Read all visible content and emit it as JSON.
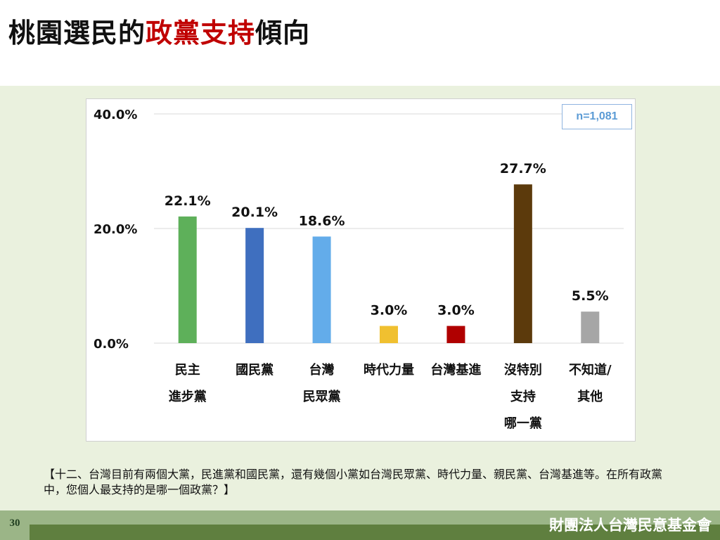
{
  "slide": {
    "title_prefix": "桃園選民的",
    "title_highlight": "政黨支持",
    "title_suffix": "傾向",
    "question": "【十二、台灣目前有兩個大黨，民進黨和國民黨，還有幾個小黨如台灣民眾黨、時代力量、親民黨、台灣基進等。在所有政黨中，您個人最支持的是哪一個政黨？】",
    "page_number": "30",
    "organization": "財團法人台灣民意基金會"
  },
  "chart_data": {
    "type": "bar",
    "sample_note": "n=1,081",
    "categories": [
      [
        "民主",
        "進步黨"
      ],
      [
        "國民黨"
      ],
      [
        "台灣",
        "民眾黨"
      ],
      [
        "時代力量"
      ],
      [
        "台灣基進"
      ],
      [
        "沒特別",
        "支持",
        "哪一黨"
      ],
      [
        "不知道/",
        "其他"
      ]
    ],
    "values": [
      22.1,
      20.1,
      18.6,
      3.0,
      3.0,
      27.7,
      5.5
    ],
    "value_labels": [
      "22.1%",
      "20.1%",
      "18.6%",
      "3.0%",
      "3.0%",
      "27.7%",
      "5.5%"
    ],
    "colors": [
      "#5eb05a",
      "#3f6fbf",
      "#63acea",
      "#f0c030",
      "#b00000",
      "#5c3a0c",
      "#a6a6a6"
    ],
    "ylim": [
      0,
      40
    ],
    "yticks": [
      "0.0%",
      "20.0%",
      "40.0%"
    ],
    "ytick_values": [
      0,
      20,
      40
    ],
    "grid": true
  }
}
